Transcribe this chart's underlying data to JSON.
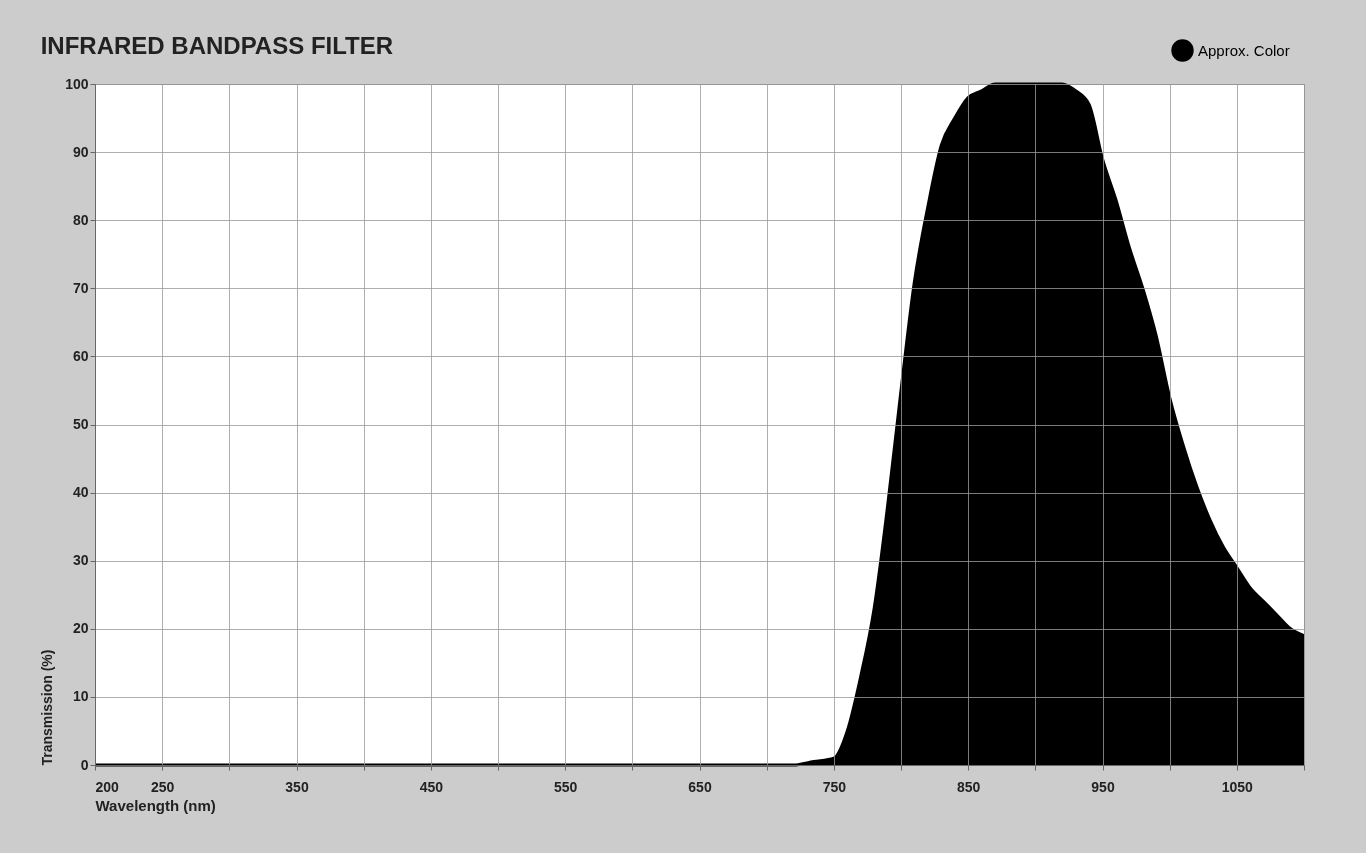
{
  "chart_data": {
    "type": "area",
    "title": "INFRARED BANDPASS FILTER",
    "xlabel": "Wavelength (nm)",
    "ylabel": "Transmission (%)",
    "x": [
      200,
      300,
      400,
      500,
      600,
      700,
      720,
      735,
      750,
      760,
      770,
      780,
      790,
      800,
      810,
      820,
      830,
      840,
      850,
      860,
      870,
      880,
      890,
      900,
      910,
      920,
      930,
      940,
      950,
      960,
      970,
      980,
      990,
      1000,
      1010,
      1020,
      1030,
      1040,
      1050,
      1060,
      1070,
      1080,
      1090,
      1100
    ],
    "series": [
      {
        "name": "Approx. Color",
        "color": "#000000",
        "values": [
          0,
          0,
          0,
          0,
          0,
          0,
          0,
          0.5,
          1,
          5,
          13,
          23,
          38,
          55,
          71,
          82,
          91,
          95,
          98,
          99,
          100,
          100,
          100,
          100,
          100,
          100,
          99,
          97,
          89,
          83,
          76,
          70,
          63,
          54,
          47,
          41,
          36,
          32,
          29,
          26,
          24,
          22,
          20,
          19
        ]
      }
    ],
    "xlim": [
      200,
      1100
    ],
    "xticks": [
      200,
      250,
      {
        "value": 300,
        "label": null
      },
      350,
      {
        "value": 400,
        "label": null
      },
      450,
      {
        "value": 500,
        "label": null
      },
      550,
      {
        "value": 600,
        "label": null
      },
      650,
      {
        "value": 700,
        "label": null
      },
      750,
      {
        "value": 800,
        "label": null
      },
      850,
      {
        "value": 900,
        "label": null
      },
      950,
      {
        "value": 1000,
        "label": null
      },
      1050,
      {
        "value": 1100,
        "label": null
      }
    ],
    "ylim": [
      0,
      100
    ],
    "yticks": [
      0,
      10,
      20,
      30,
      40,
      50,
      60,
      70,
      80,
      90,
      100
    ],
    "grid": true,
    "legend": "top right"
  }
}
